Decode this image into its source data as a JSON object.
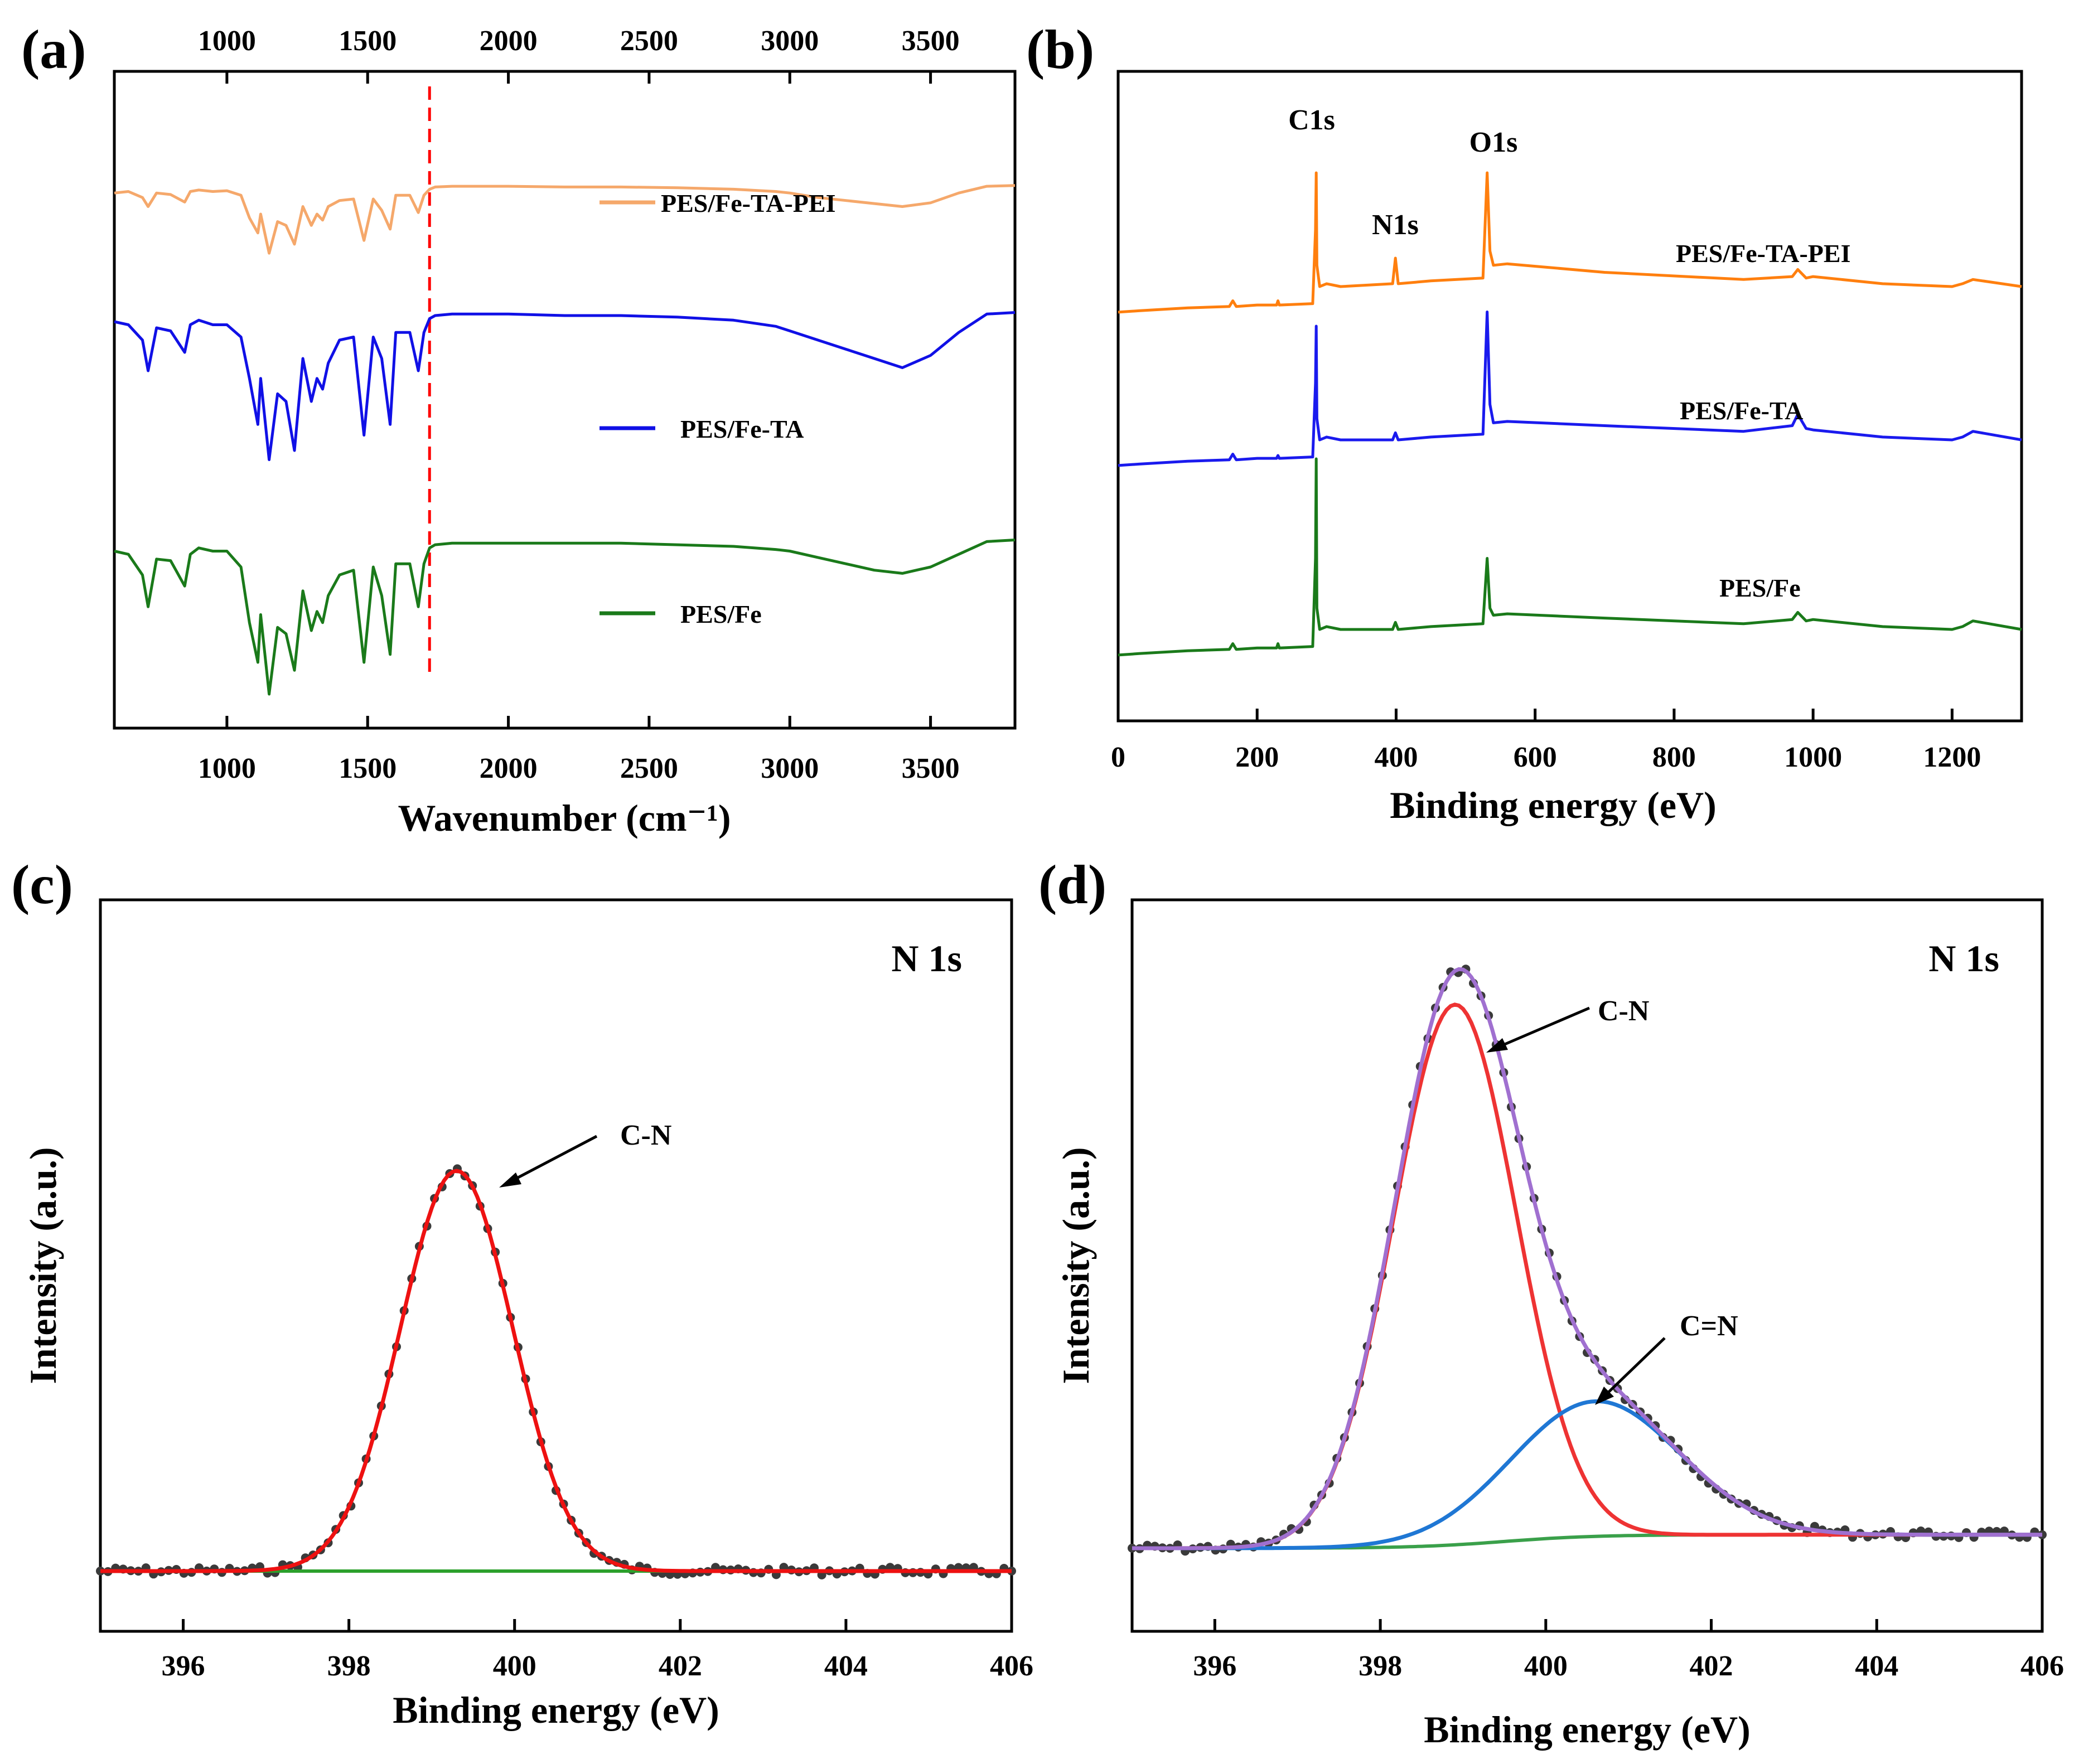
{
  "figure": {
    "panels": [
      "(a)",
      "(b)",
      "(c)",
      "(d)"
    ]
  },
  "chart_data": [
    {
      "id": "a",
      "label": "(a)",
      "type": "line",
      "title": "",
      "xlabel": "Wavenumber (cm⁻¹)",
      "ylabel": "",
      "xlim": [
        600,
        3800
      ],
      "xticks": [
        1000,
        1500,
        2000,
        2500,
        3000,
        3500
      ],
      "xtick_labels": [
        "1000",
        "1500",
        "2000",
        "2500",
        "3000",
        "3500"
      ],
      "top_axis_ticks": [
        "1000",
        "1500",
        "2000",
        "2500",
        "3000",
        "3500"
      ],
      "marker_line": {
        "x": 1720,
        "color": "#ff0000",
        "style": "dashed"
      },
      "series": [
        {
          "name": "PES/Fe-TA-PEI",
          "color": "#f5a86b",
          "offset": 2,
          "x": [
            600,
            650,
            700,
            720,
            750,
            800,
            850,
            870,
            900,
            950,
            1000,
            1050,
            1080,
            1110,
            1120,
            1150,
            1180,
            1210,
            1240,
            1270,
            1300,
            1320,
            1340,
            1360,
            1400,
            1450,
            1487,
            1520,
            1550,
            1580,
            1600,
            1650,
            1680,
            1700,
            1720,
            1740,
            1800,
            2000,
            2200,
            2400,
            2600,
            2800,
            2950,
            3000,
            3100,
            3200,
            3300,
            3400,
            3500,
            3600,
            3700,
            3800
          ],
          "values": [
            0.88,
            0.9,
            0.82,
            0.7,
            0.88,
            0.86,
            0.76,
            0.9,
            0.92,
            0.9,
            0.91,
            0.85,
            0.55,
            0.35,
            0.6,
            0.08,
            0.5,
            0.45,
            0.2,
            0.7,
            0.45,
            0.6,
            0.52,
            0.7,
            0.78,
            0.8,
            0.25,
            0.8,
            0.65,
            0.4,
            0.85,
            0.85,
            0.62,
            0.85,
            0.93,
            0.96,
            0.97,
            0.97,
            0.96,
            0.96,
            0.95,
            0.93,
            0.9,
            0.88,
            0.82,
            0.78,
            0.74,
            0.7,
            0.75,
            0.88,
            0.97,
            0.98
          ]
        },
        {
          "name": "PES/Fe-TA",
          "color": "#1010e6",
          "offset": 1,
          "x": [
            600,
            650,
            700,
            720,
            750,
            800,
            850,
            870,
            900,
            950,
            1000,
            1050,
            1080,
            1110,
            1120,
            1150,
            1180,
            1210,
            1240,
            1270,
            1300,
            1320,
            1340,
            1360,
            1400,
            1450,
            1487,
            1520,
            1550,
            1580,
            1600,
            1650,
            1680,
            1700,
            1720,
            1740,
            1800,
            2000,
            2200,
            2400,
            2600,
            2800,
            2950,
            3000,
            3100,
            3200,
            3300,
            3400,
            3500,
            3600,
            3700,
            3800
          ],
          "values": [
            0.92,
            0.9,
            0.8,
            0.6,
            0.88,
            0.86,
            0.72,
            0.9,
            0.93,
            0.9,
            0.9,
            0.82,
            0.55,
            0.25,
            0.55,
            0.02,
            0.45,
            0.4,
            0.08,
            0.68,
            0.4,
            0.55,
            0.48,
            0.65,
            0.8,
            0.82,
            0.18,
            0.82,
            0.68,
            0.25,
            0.85,
            0.85,
            0.6,
            0.85,
            0.94,
            0.96,
            0.97,
            0.97,
            0.96,
            0.96,
            0.95,
            0.93,
            0.89,
            0.86,
            0.8,
            0.74,
            0.68,
            0.62,
            0.7,
            0.85,
            0.97,
            0.98
          ]
        },
        {
          "name": "PES/Fe",
          "color": "#1a7a1a",
          "offset": 0,
          "x": [
            600,
            650,
            700,
            720,
            750,
            800,
            850,
            870,
            900,
            950,
            1000,
            1050,
            1080,
            1110,
            1120,
            1150,
            1180,
            1210,
            1240,
            1270,
            1300,
            1320,
            1340,
            1360,
            1400,
            1450,
            1487,
            1520,
            1550,
            1580,
            1600,
            1650,
            1680,
            1700,
            1720,
            1740,
            1800,
            2000,
            2200,
            2400,
            2600,
            2800,
            2950,
            3000,
            3100,
            3200,
            3300,
            3400,
            3500,
            3600,
            3700,
            3800
          ],
          "values": [
            0.9,
            0.88,
            0.75,
            0.55,
            0.85,
            0.84,
            0.68,
            0.88,
            0.92,
            0.9,
            0.9,
            0.8,
            0.45,
            0.2,
            0.5,
            0.0,
            0.42,
            0.38,
            0.15,
            0.65,
            0.4,
            0.52,
            0.45,
            0.62,
            0.75,
            0.78,
            0.2,
            0.8,
            0.62,
            0.25,
            0.82,
            0.82,
            0.55,
            0.82,
            0.92,
            0.94,
            0.95,
            0.95,
            0.95,
            0.95,
            0.94,
            0.93,
            0.91,
            0.9,
            0.86,
            0.82,
            0.78,
            0.76,
            0.8,
            0.88,
            0.96,
            0.97
          ]
        }
      ]
    },
    {
      "id": "b",
      "label": "(b)",
      "type": "line",
      "title": "",
      "xlabel": "Binding energy (eV)",
      "ylabel": "",
      "xlim": [
        0,
        1300
      ],
      "xticks": [
        0,
        200,
        400,
        600,
        800,
        1000,
        1200
      ],
      "xtick_labels": [
        "0",
        "200",
        "400",
        "600",
        "800",
        "1000",
        "1200"
      ],
      "annotations": [
        "C1s",
        "N1s",
        "O1s"
      ],
      "series": [
        {
          "name": "PES/Fe-TA-PEI",
          "color": "#ff7f0e",
          "offset": 2,
          "x": [
            0,
            30,
            100,
            160,
            165,
            170,
            200,
            228,
            230,
            232,
            280,
            284,
            285,
            286,
            290,
            300,
            320,
            395,
            399,
            403,
            450,
            525,
            531,
            535,
            540,
            560,
            700,
            900,
            970,
            978,
            990,
            1000,
            1100,
            1200,
            1215,
            1230,
            1300
          ],
          "values": [
            0.02,
            0.03,
            0.05,
            0.06,
            0.1,
            0.06,
            0.07,
            0.07,
            0.1,
            0.07,
            0.08,
            0.6,
            1.0,
            0.35,
            0.2,
            0.22,
            0.2,
            0.22,
            0.4,
            0.22,
            0.24,
            0.26,
            1.0,
            0.45,
            0.35,
            0.36,
            0.3,
            0.25,
            0.27,
            0.32,
            0.26,
            0.27,
            0.22,
            0.2,
            0.22,
            0.25,
            0.2
          ]
        },
        {
          "name": "PES/Fe-TA",
          "color": "#1a1aee",
          "offset": 1,
          "x": [
            0,
            30,
            100,
            160,
            165,
            170,
            200,
            228,
            230,
            232,
            280,
            284,
            285,
            286,
            290,
            300,
            320,
            395,
            399,
            403,
            450,
            525,
            531,
            535,
            540,
            560,
            700,
            900,
            970,
            978,
            990,
            1000,
            1100,
            1200,
            1215,
            1230,
            1300
          ],
          "values": [
            0.02,
            0.03,
            0.05,
            0.06,
            0.1,
            0.06,
            0.07,
            0.07,
            0.09,
            0.07,
            0.08,
            0.6,
            1.0,
            0.35,
            0.2,
            0.22,
            0.2,
            0.2,
            0.25,
            0.2,
            0.22,
            0.24,
            1.1,
            0.45,
            0.32,
            0.33,
            0.3,
            0.26,
            0.3,
            0.38,
            0.28,
            0.27,
            0.22,
            0.2,
            0.22,
            0.26,
            0.2
          ]
        },
        {
          "name": "PES/Fe",
          "color": "#1a7a1a",
          "offset": 0,
          "x": [
            0,
            30,
            100,
            160,
            165,
            170,
            200,
            228,
            230,
            232,
            280,
            284,
            285,
            286,
            290,
            300,
            320,
            395,
            399,
            403,
            450,
            525,
            531,
            535,
            540,
            560,
            700,
            900,
            970,
            978,
            990,
            1000,
            1100,
            1200,
            1215,
            1230,
            1300
          ],
          "values": [
            0.02,
            0.03,
            0.05,
            0.06,
            0.1,
            0.06,
            0.07,
            0.07,
            0.1,
            0.07,
            0.08,
            0.7,
            1.4,
            0.35,
            0.2,
            0.22,
            0.2,
            0.2,
            0.25,
            0.2,
            0.22,
            0.24,
            0.7,
            0.35,
            0.3,
            0.31,
            0.28,
            0.24,
            0.27,
            0.32,
            0.26,
            0.27,
            0.22,
            0.2,
            0.22,
            0.26,
            0.2
          ]
        }
      ]
    },
    {
      "id": "c",
      "label": "(c)",
      "type": "line",
      "title": "N 1s",
      "xlabel": "Binding energy (eV)",
      "ylabel": "Intensity (a.u.)",
      "xlim": [
        395,
        406
      ],
      "xticks": [
        396,
        398,
        400,
        402,
        404,
        406
      ],
      "xtick_labels": [
        "396",
        "398",
        "400",
        "402",
        "404",
        "406"
      ],
      "annotations": [
        "C-N"
      ],
      "peaks": [
        {
          "name": "C-N",
          "center": 399.3,
          "fwhm": 1.6,
          "height": 1.0,
          "color": "#ee1111"
        }
      ],
      "baseline": {
        "color": "#2ca02c",
        "level": 0.0
      },
      "raw_points_color": "#3a3a3a"
    },
    {
      "id": "d",
      "label": "(d)",
      "type": "line",
      "title": "N 1s",
      "xlabel": "Binding energy (eV)",
      "ylabel": "Intensity (a.u.)",
      "xlim": [
        395,
        406
      ],
      "xticks": [
        396,
        398,
        400,
        402,
        404,
        406
      ],
      "xtick_labels": [
        "396",
        "398",
        "400",
        "402",
        "404",
        "406"
      ],
      "annotations": [
        "C-N",
        "C=N"
      ],
      "peaks": [
        {
          "name": "C-N",
          "center": 398.9,
          "fwhm": 1.75,
          "height": 1.0,
          "color": "#ee3333"
        },
        {
          "name": "C=N",
          "center": 400.6,
          "fwhm": 2.4,
          "height": 0.25,
          "color": "#1f77d4"
        }
      ],
      "envelope": {
        "color": "#a070d0"
      },
      "baseline": {
        "color": "#3aa04a",
        "start": 0.0,
        "end": 0.025
      },
      "raw_points_color": "#3a3a3a"
    }
  ]
}
